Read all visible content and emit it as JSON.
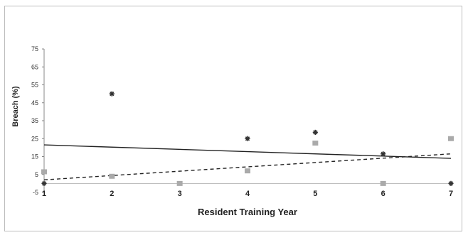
{
  "chart_data": {
    "type": "scatter",
    "title": "",
    "xlabel": "Resident Training Year",
    "ylabel": "Breach (%)",
    "xlim": [
      1,
      7
    ],
    "ylim": [
      -5,
      75
    ],
    "x_ticks": [
      "1",
      "2",
      "3",
      "4",
      "5",
      "6",
      "7"
    ],
    "y_ticks": [
      "-5",
      "5",
      "15",
      "25",
      "35",
      "45",
      "55",
      "65",
      "75"
    ],
    "series": [
      {
        "marker": "asterisk",
        "color": "#333333",
        "points": [
          {
            "x": 1,
            "y": 0
          },
          {
            "x": 2,
            "y": 50
          },
          {
            "x": 4,
            "y": 25
          },
          {
            "x": 5,
            "y": 28.5
          },
          {
            "x": 6,
            "y": 16.5
          },
          {
            "x": 7,
            "y": 0
          }
        ],
        "trendline": {
          "style": "solid",
          "color": "#222222",
          "start": {
            "x": 1,
            "y": 21.5
          },
          "end": {
            "x": 7,
            "y": 14
          }
        }
      },
      {
        "marker": "square",
        "color": "#aaaaaa",
        "points": [
          {
            "x": 1,
            "y": 6.5
          },
          {
            "x": 2,
            "y": 4
          },
          {
            "x": 3,
            "y": 0
          },
          {
            "x": 4,
            "y": 7
          },
          {
            "x": 5,
            "y": 22.5
          },
          {
            "x": 6,
            "y": 0
          },
          {
            "x": 7,
            "y": 25
          }
        ],
        "trendline": {
          "style": "dashed",
          "color": "#222222",
          "start": {
            "x": 1,
            "y": 2
          },
          "end": {
            "x": 7,
            "y": 16.5
          }
        }
      }
    ],
    "grid": false,
    "legend": "none"
  }
}
